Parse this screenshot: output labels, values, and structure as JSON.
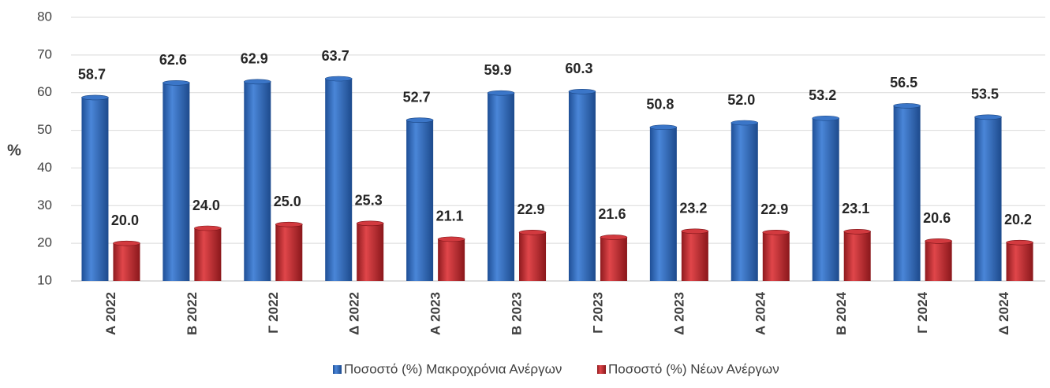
{
  "chart_data": {
    "type": "bar",
    "y_label": "%",
    "categories": [
      "Α 2022",
      "Β 2022",
      "Γ 2022",
      "Δ 2022",
      "Α 2023",
      "Β 2023",
      "Γ 2023",
      "Δ 2023",
      "Α 2024",
      "Β 2024",
      "Γ 2024",
      "Δ 2024"
    ],
    "series": [
      {
        "name": "Ποσοστό (%) Μακροχρόνια Ανέργων",
        "color": "#2f67b8",
        "values": [
          58.7,
          62.6,
          62.9,
          63.7,
          52.7,
          59.9,
          60.3,
          50.8,
          52,
          53.2,
          56.5,
          53.5
        ],
        "value_labels": [
          "58.7",
          "62.6",
          "62.9",
          "63.7",
          "52.7",
          "59.9",
          "60.3",
          "50.8",
          "52.0",
          "53.2",
          "56.5",
          "53.5"
        ]
      },
      {
        "name": "Ποσοστό (%) Νέων Ανέργων",
        "color": "#c4262b",
        "values": [
          20,
          24,
          25,
          25.3,
          21.1,
          22.9,
          21.6,
          23.2,
          22.9,
          23.1,
          20.6,
          20.2
        ],
        "value_labels": [
          "20.0",
          "24.0",
          "25.0",
          "25.3",
          "21.1",
          "22.9",
          "21.6",
          "23.2",
          "22.9",
          "23.1",
          "20.6",
          "20.2"
        ]
      }
    ],
    "ylim": [
      10,
      80
    ],
    "yticks": [
      10,
      20,
      30,
      40,
      50,
      60,
      70,
      80
    ],
    "grid": true,
    "legend": "bottom"
  }
}
